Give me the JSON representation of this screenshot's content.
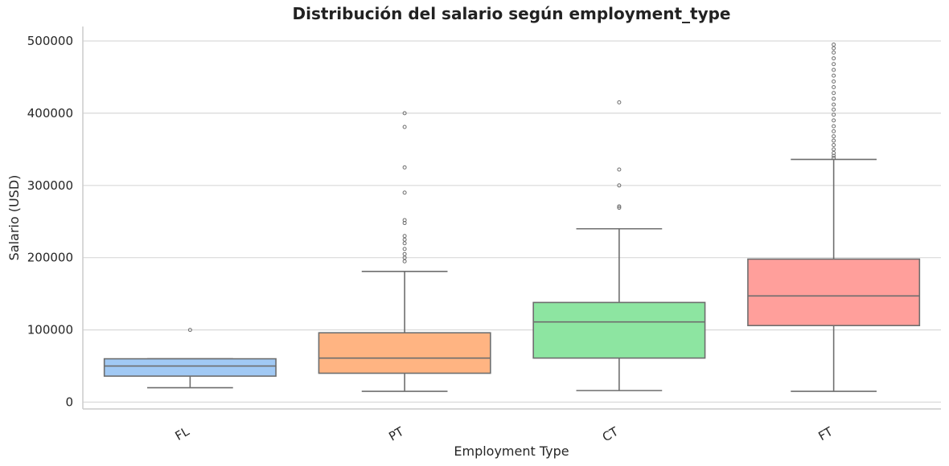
{
  "chart_data": {
    "type": "box",
    "title": "Distribución del salario según employment_type",
    "xlabel": "Employment Type",
    "ylabel": "Salario (USD)",
    "ylim": [
      -10000,
      520000
    ],
    "yticks": [
      "0",
      "100000",
      "200000",
      "300000",
      "400000",
      "500000"
    ],
    "grid": "y",
    "categories": [
      "FL",
      "PT",
      "CT",
      "FT"
    ],
    "colors": [
      "#a1c9f4",
      "#ffb482",
      "#8de5a1",
      "#ff9f9b"
    ],
    "boxes": [
      {
        "category": "FL",
        "whislo": 20000,
        "q1": 36000,
        "median": 50000,
        "q3": 60000,
        "whishi": 60000,
        "fliers": [
          100000
        ]
      },
      {
        "category": "PT",
        "whislo": 15000,
        "q1": 40000,
        "median": 61000,
        "q3": 96000,
        "whishi": 181000,
        "fliers": [
          195000,
          200000,
          205000,
          212000,
          220000,
          225000,
          230000,
          248000,
          252000,
          290000,
          325000,
          381000,
          400000
        ]
      },
      {
        "category": "CT",
        "whislo": 16000,
        "q1": 61000,
        "median": 111000,
        "q3": 138000,
        "whishi": 240000,
        "fliers": [
          269000,
          271000,
          300000,
          322000,
          415000
        ]
      },
      {
        "category": "FT",
        "whislo": 15000,
        "q1": 106000,
        "median": 147000,
        "q3": 198000,
        "whishi": 336000,
        "fliers": [
          338000,
          341000,
          345000,
          350000,
          356000,
          362000,
          368000,
          375000,
          382000,
          390000,
          398000,
          405000,
          412000,
          420000,
          428000,
          436000,
          444000,
          452000,
          460000,
          468000,
          476000,
          484000,
          490000,
          495000
        ]
      }
    ]
  }
}
